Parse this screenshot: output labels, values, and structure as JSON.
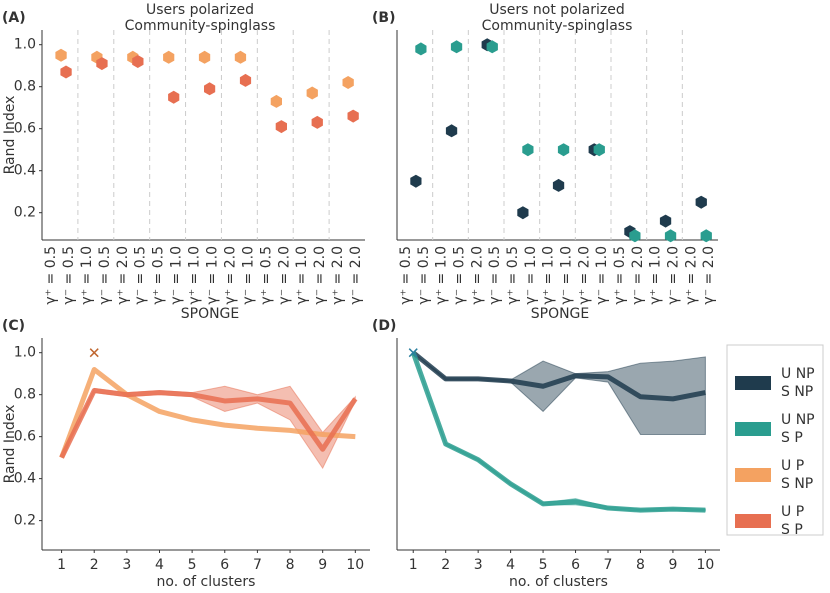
{
  "chart_data": [
    {
      "type": "scatter",
      "panel_label": "(A)",
      "title": [
        "Users polarized",
        "Community-spinglass"
      ],
      "ylabel": "Rand Index",
      "categories": [
        [
          "γ⁺ = 0.5",
          "γ⁻ = 0.5"
        ],
        [
          "γ⁺ = 1.0",
          "γ⁻ = 0.5"
        ],
        [
          "γ⁺ = 2.0",
          "γ⁻ = 0.5"
        ],
        [
          "γ⁺ = 0.5",
          "γ⁻ = 1.0"
        ],
        [
          "γ⁺ = 1.0",
          "γ⁻ = 1.0"
        ],
        [
          "γ⁺ = 2.0",
          "γ⁻ = 1.0"
        ],
        [
          "γ⁺ = 0.5",
          "γ⁻ = 2.0"
        ],
        [
          "γ⁺ = 1.0",
          "γ⁻ = 2.0"
        ],
        [
          "γ⁺ = 2.0",
          "γ⁻ = 2.0"
        ]
      ],
      "ylim": [
        0.07,
        1.07
      ],
      "yticks": [
        0.2,
        0.4,
        0.6,
        0.8,
        {
          "value": 1,
          "label": "1.0"
        }
      ],
      "series": [
        {
          "color": "#f4a261",
          "values": [
            0.95,
            0.94,
            0.94,
            0.94,
            0.94,
            0.94,
            0.73,
            0.77,
            0.82
          ]
        },
        {
          "color": "#e76f51",
          "values": [
            0.87,
            0.91,
            0.92,
            0.75,
            0.79,
            0.83,
            0.61,
            0.63,
            0.66
          ]
        }
      ]
    },
    {
      "type": "scatter",
      "panel_label": "(B)",
      "title": [
        "Users not polarized",
        "Community-spinglass"
      ],
      "categories": [
        [
          "γ⁺ = 0.5",
          "γ⁻ = 0.5"
        ],
        [
          "γ⁺ = 1.0",
          "γ⁻ = 0.5"
        ],
        [
          "γ⁺ = 2.0",
          "γ⁻ = 0.5"
        ],
        [
          "γ⁺ = 0.5",
          "γ⁻ = 1.0"
        ],
        [
          "γ⁺ = 1.0",
          "γ⁻ = 1.0"
        ],
        [
          "γ⁺ = 2.0",
          "γ⁻ = 1.0"
        ],
        [
          "γ⁺ = 0.5",
          "γ⁻ = 2.0"
        ],
        [
          "γ⁺ = 1.0",
          "γ⁻ = 2.0"
        ],
        [
          "γ⁺ = 2.0",
          "γ⁻ = 2.0"
        ]
      ],
      "ylim": [
        0.07,
        1.07
      ],
      "series": [
        {
          "color": "#1f3b4d",
          "values": [
            0.35,
            0.59,
            1.0,
            0.2,
            0.33,
            0.5,
            0.11,
            0.16,
            0.25
          ]
        },
        {
          "color": "#2a9d8f",
          "values": [
            0.98,
            0.99,
            0.99,
            0.5,
            0.5,
            0.5,
            0.09,
            0.09,
            0.09
          ]
        }
      ]
    },
    {
      "type": "line",
      "panel_label": "(C)",
      "title": [
        "SPONGE"
      ],
      "ylabel": "Rand Index",
      "xlabel": "no. of clusters",
      "x": [
        1,
        2,
        3,
        4,
        5,
        6,
        7,
        8,
        9,
        10
      ],
      "xlim": [
        0.4,
        10.45
      ],
      "xticks": [
        1,
        2,
        3,
        4,
        5,
        6,
        7,
        8,
        9,
        10
      ],
      "ylim": [
        0.06,
        1.07
      ],
      "yticks": [
        0.2,
        0.4,
        0.6,
        0.8,
        {
          "value": 1,
          "label": "1.0"
        }
      ],
      "series": [
        {
          "color": "#f4a261",
          "values": [
            0.5,
            0.92,
            0.8,
            0.72,
            0.68,
            0.655,
            0.64,
            0.63,
            0.61,
            0.6
          ]
        },
        {
          "color": "#e76f51",
          "values": [
            0.5,
            0.82,
            0.8,
            0.81,
            0.8,
            0.77,
            0.78,
            0.76,
            0.54,
            0.78
          ],
          "lower": [
            0.5,
            0.81,
            0.79,
            0.8,
            0.79,
            0.72,
            0.76,
            0.68,
            0.45,
            0.77
          ],
          "upper": [
            0.5,
            0.83,
            0.81,
            0.82,
            0.81,
            0.84,
            0.8,
            0.84,
            0.62,
            0.79
          ]
        }
      ],
      "markers": [
        {
          "x": 2,
          "y": 1.0,
          "color": "#c0662f"
        }
      ]
    },
    {
      "type": "line",
      "panel_label": "(D)",
      "title": [
        "SPONGE"
      ],
      "xlabel": "no. of clusters",
      "x": [
        1,
        2,
        3,
        4,
        5,
        6,
        7,
        8,
        9,
        10
      ],
      "xlim": [
        0.5,
        10.45
      ],
      "xticks": [
        1,
        2,
        3,
        4,
        5,
        6,
        7,
        8,
        9,
        10
      ],
      "ylim": [
        0.06,
        1.07
      ],
      "series": [
        {
          "color": "#1f3b4d",
          "values": [
            1.0,
            0.875,
            0.875,
            0.865,
            0.84,
            0.89,
            0.885,
            0.79,
            0.78,
            0.81
          ],
          "lower": [
            1.0,
            0.87,
            0.87,
            0.86,
            0.72,
            0.88,
            0.86,
            0.61,
            0.61,
            0.61
          ],
          "upper": [
            1.0,
            0.88,
            0.88,
            0.87,
            0.96,
            0.9,
            0.91,
            0.95,
            0.96,
            0.98
          ]
        },
        {
          "color": "#2a9d8f",
          "values": [
            1.0,
            0.565,
            0.49,
            0.375,
            0.28,
            0.29,
            0.26,
            0.25,
            0.255,
            0.25
          ],
          "lower": [
            1.0,
            0.56,
            0.485,
            0.37,
            0.275,
            0.275,
            0.255,
            0.245,
            0.25,
            0.245
          ],
          "upper": [
            1.0,
            0.57,
            0.495,
            0.38,
            0.285,
            0.305,
            0.265,
            0.255,
            0.26,
            0.255
          ]
        }
      ],
      "markers": [
        {
          "x": 1,
          "y": 1.0,
          "color": "#2a7f9f"
        }
      ]
    }
  ],
  "legend": [
    {
      "lines": [
        "U NP",
        "S NP"
      ],
      "color": "#1f3b4d"
    },
    {
      "lines": [
        "U NP",
        "S P"
      ],
      "color": "#2a9d8f"
    },
    {
      "lines": [
        "U P",
        "S NP"
      ],
      "color": "#f4a261"
    },
    {
      "lines": [
        "U P",
        "S P"
      ],
      "color": "#e76f51"
    }
  ]
}
